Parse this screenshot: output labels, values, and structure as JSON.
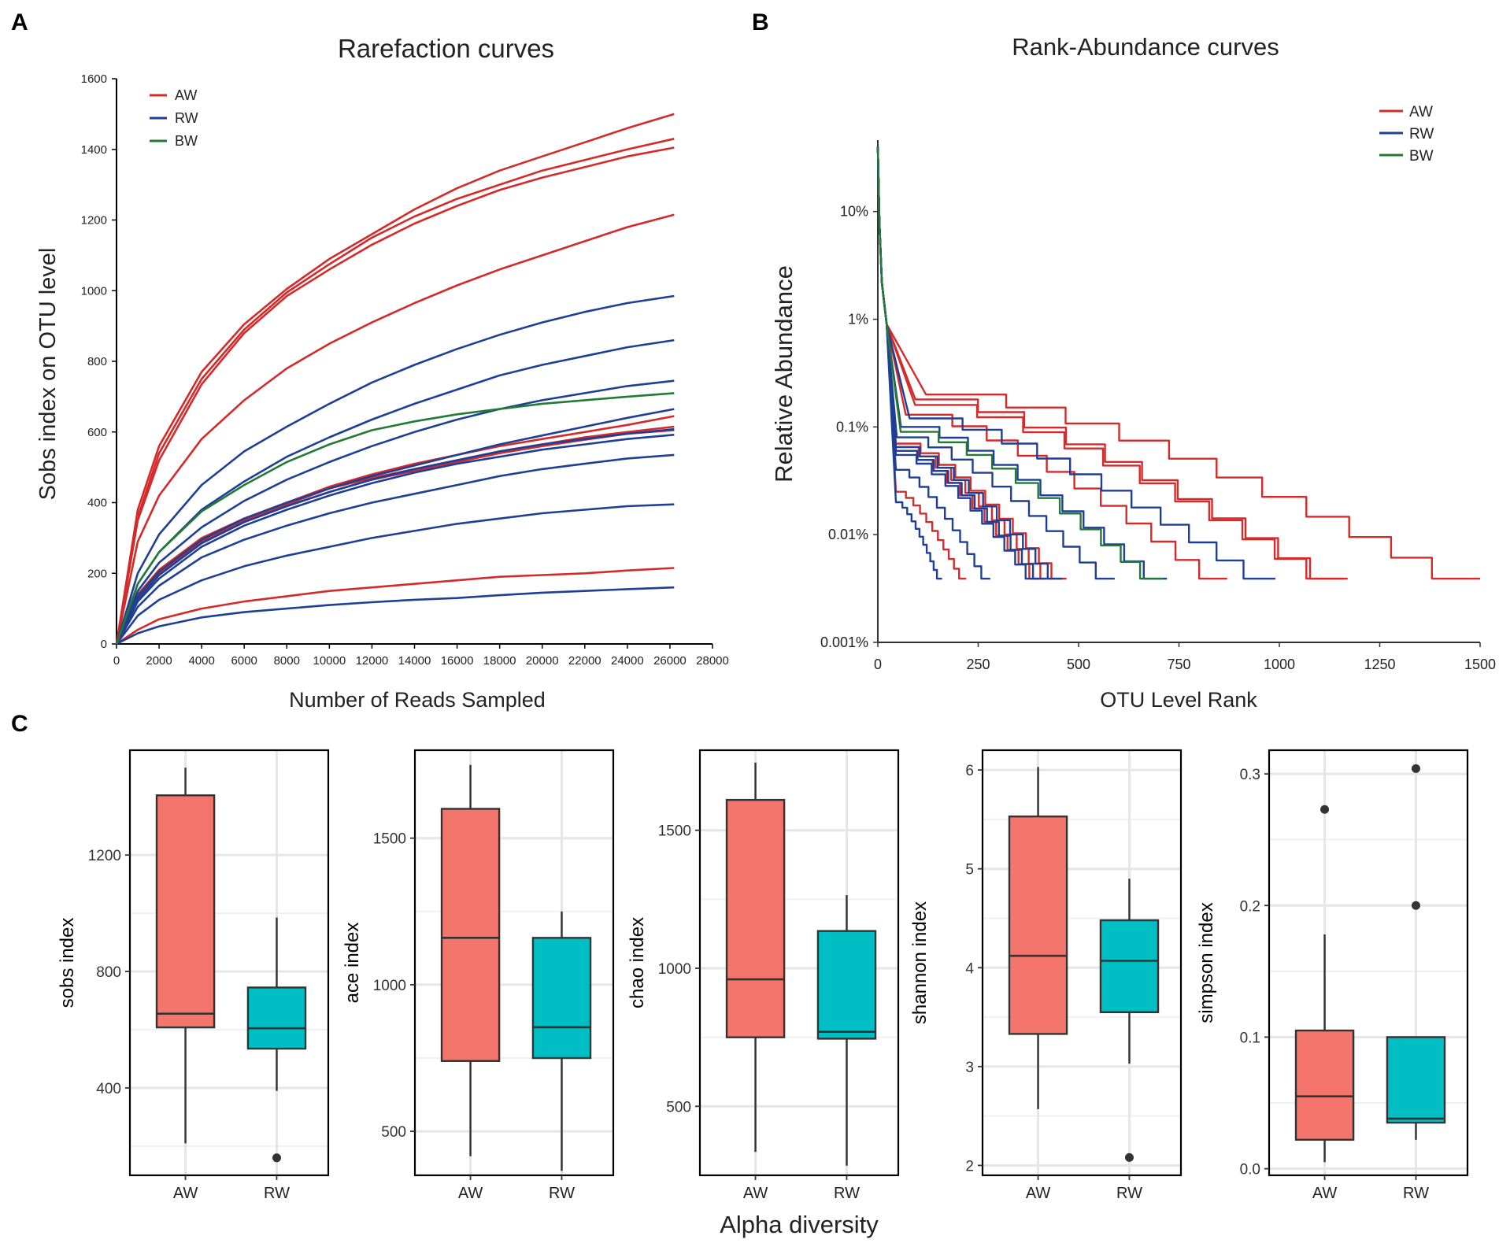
{
  "panel_labels": [
    "A",
    "B",
    "C"
  ],
  "colors": {
    "AW": "#d42a2a",
    "RW": "#1f3f96",
    "BW": "#237a35",
    "box_AW": "#f4756b",
    "box_RW": "#00bfc4",
    "grid": "#e6e6e6"
  },
  "chart_data": [
    {
      "id": "A",
      "type": "line",
      "title": "Rarefaction curves",
      "xlabel": "Number of Reads Sampled",
      "ylabel": "Sobs index on OTU level",
      "xlim": [
        0,
        28000
      ],
      "ylim": [
        0,
        1600
      ],
      "xticks": [
        "0",
        "2000",
        "4000",
        "6000",
        "8000",
        "10000",
        "12000",
        "14000",
        "16000",
        "18000",
        "20000",
        "22000",
        "24000",
        "26000",
        "28000"
      ],
      "yticks": [
        "0",
        "200",
        "400",
        "600",
        "800",
        "1000",
        "1200",
        "1400",
        "1600"
      ],
      "legend": {
        "position": "top-left",
        "entries": [
          "AW",
          "RW",
          "BW"
        ]
      },
      "x": [
        0,
        1000,
        2000,
        4000,
        6000,
        8000,
        10000,
        12000,
        14000,
        16000,
        18000,
        20000,
        22000,
        24000,
        26200
      ],
      "series": [
        {
          "name": "AW",
          "values": [
            0,
            380,
            560,
            770,
            905,
            1005,
            1090,
            1160,
            1230,
            1290,
            1340,
            1380,
            1420,
            1460,
            1500
          ]
        },
        {
          "name": "AW",
          "values": [
            0,
            360,
            540,
            750,
            890,
            995,
            1075,
            1150,
            1210,
            1260,
            1300,
            1340,
            1370,
            1400,
            1430
          ]
        },
        {
          "name": "AW",
          "values": [
            0,
            350,
            520,
            735,
            880,
            985,
            1060,
            1130,
            1190,
            1240,
            1285,
            1320,
            1350,
            1380,
            1405
          ]
        },
        {
          "name": "AW",
          "values": [
            0,
            290,
            420,
            580,
            690,
            780,
            850,
            910,
            965,
            1015,
            1060,
            1100,
            1140,
            1180,
            1215
          ]
        },
        {
          "name": "AW",
          "values": [
            0,
            140,
            210,
            300,
            355,
            400,
            445,
            480,
            510,
            535,
            560,
            580,
            600,
            620,
            645
          ]
        },
        {
          "name": "AW",
          "values": [
            0,
            130,
            200,
            290,
            350,
            395,
            440,
            470,
            495,
            520,
            545,
            565,
            585,
            600,
            615
          ]
        },
        {
          "name": "AW",
          "values": [
            0,
            130,
            195,
            285,
            345,
            390,
            430,
            465,
            490,
            515,
            540,
            560,
            578,
            595,
            605
          ]
        },
        {
          "name": "AW",
          "values": [
            0,
            40,
            70,
            100,
            120,
            135,
            150,
            160,
            170,
            180,
            190,
            195,
            200,
            208,
            215
          ]
        },
        {
          "name": "RW",
          "values": [
            0,
            200,
            310,
            450,
            545,
            615,
            680,
            740,
            790,
            835,
            875,
            910,
            940,
            965,
            985
          ]
        },
        {
          "name": "RW",
          "values": [
            0,
            170,
            260,
            380,
            460,
            530,
            585,
            635,
            680,
            720,
            760,
            790,
            815,
            840,
            860
          ]
        },
        {
          "name": "RW",
          "values": [
            0,
            150,
            230,
            330,
            405,
            465,
            515,
            560,
            600,
            635,
            665,
            690,
            710,
            730,
            745
          ]
        },
        {
          "name": "RW",
          "values": [
            0,
            135,
            205,
            295,
            355,
            400,
            440,
            475,
            505,
            535,
            565,
            590,
            615,
            640,
            665
          ]
        },
        {
          "name": "RW",
          "values": [
            0,
            125,
            195,
            285,
            345,
            390,
            430,
            465,
            495,
            520,
            545,
            565,
            580,
            595,
            608
          ]
        },
        {
          "name": "RW",
          "values": [
            0,
            120,
            185,
            275,
            335,
            380,
            420,
            455,
            485,
            510,
            530,
            550,
            565,
            580,
            592
          ]
        },
        {
          "name": "RW",
          "values": [
            0,
            105,
            165,
            245,
            295,
            335,
            370,
            400,
            425,
            450,
            475,
            495,
            510,
            525,
            535
          ]
        },
        {
          "name": "RW",
          "values": [
            0,
            80,
            125,
            180,
            220,
            250,
            275,
            300,
            320,
            340,
            355,
            370,
            380,
            390,
            395
          ]
        },
        {
          "name": "RW",
          "values": [
            0,
            30,
            50,
            75,
            90,
            100,
            110,
            118,
            125,
            130,
            138,
            145,
            150,
            155,
            160
          ]
        },
        {
          "name": "BW",
          "values": [
            0,
            170,
            260,
            375,
            450,
            515,
            565,
            605,
            630,
            650,
            665,
            680,
            690,
            700,
            710
          ]
        }
      ]
    },
    {
      "id": "B",
      "type": "line",
      "title": "Rank-Abundance curves",
      "xlabel": "OTU Level Rank",
      "ylabel": "Relative Abundance",
      "xlim": [
        0,
        1500
      ],
      "ylim": [
        0.001,
        100
      ],
      "yscale": "log",
      "xticks": [
        "0",
        "250",
        "500",
        "750",
        "1000",
        "1250",
        "1500"
      ],
      "yticks": [
        "0.001%",
        "0.01%",
        "0.1%",
        "1%",
        "10%"
      ],
      "legend": {
        "position": "top-right",
        "entries": [
          "AW",
          "RW",
          "BW"
        ]
      },
      "series": [
        {
          "name": "AW",
          "end": 1500,
          "knee": 0.2
        },
        {
          "name": "AW",
          "end": 1170,
          "knee": 0.18
        },
        {
          "name": "AW",
          "end": 1160,
          "knee": 0.16
        },
        {
          "name": "AW",
          "end": 870,
          "knee": 0.13
        },
        {
          "name": "AW",
          "end": 470,
          "knee": 0.07
        },
        {
          "name": "AW",
          "end": 440,
          "knee": 0.065
        },
        {
          "name": "AW",
          "end": 410,
          "knee": 0.06
        },
        {
          "name": "AW",
          "end": 220,
          "knee": 0.025
        },
        {
          "name": "RW",
          "end": 990,
          "knee": 0.12
        },
        {
          "name": "RW",
          "end": 720,
          "knee": 0.1
        },
        {
          "name": "RW",
          "end": 590,
          "knee": 0.08
        },
        {
          "name": "RW",
          "end": 460,
          "knee": 0.065
        },
        {
          "name": "RW",
          "end": 420,
          "knee": 0.06
        },
        {
          "name": "RW",
          "end": 400,
          "knee": 0.055
        },
        {
          "name": "RW",
          "end": 280,
          "knee": 0.04
        },
        {
          "name": "RW",
          "end": 160,
          "knee": 0.02
        },
        {
          "name": "BW",
          "end": 710,
          "knee": 0.09
        }
      ]
    },
    {
      "id": "C",
      "type": "box",
      "xlabel": "Alpha diversity",
      "categories": [
        "AW",
        "RW"
      ],
      "panels": [
        {
          "ylabel": "sobs index",
          "ylim": [
            100,
            1560
          ],
          "yticks": [
            400,
            800,
            1200
          ],
          "boxes": [
            {
              "group": "AW",
              "min": 210,
              "q1": 608,
              "median": 655,
              "q3": 1405,
              "max": 1500,
              "outliers": []
            },
            {
              "group": "RW",
              "min": 390,
              "q1": 535,
              "median": 605,
              "q3": 745,
              "max": 985,
              "outliers": [
                160
              ]
            }
          ]
        },
        {
          "ylabel": "ace index",
          "ylim": [
            350,
            1800
          ],
          "yticks": [
            500,
            1000,
            1500
          ],
          "boxes": [
            {
              "group": "AW",
              "min": 415,
              "q1": 740,
              "median": 1160,
              "q3": 1600,
              "max": 1750,
              "outliers": []
            },
            {
              "group": "RW",
              "min": 365,
              "q1": 750,
              "median": 855,
              "q3": 1160,
              "max": 1250,
              "outliers": []
            }
          ]
        },
        {
          "ylabel": "chao index",
          "ylim": [
            250,
            1790
          ],
          "yticks": [
            500,
            1000,
            1500
          ],
          "boxes": [
            {
              "group": "AW",
              "min": 335,
              "q1": 750,
              "median": 960,
              "q3": 1610,
              "max": 1745,
              "outliers": []
            },
            {
              "group": "RW",
              "min": 285,
              "q1": 745,
              "median": 770,
              "q3": 1135,
              "max": 1265,
              "outliers": []
            }
          ]
        },
        {
          "ylabel": "shannon index",
          "ylim": [
            1.9,
            6.2
          ],
          "yticks": [
            2,
            3,
            4,
            5,
            6
          ],
          "boxes": [
            {
              "group": "AW",
              "min": 2.57,
              "q1": 3.33,
              "median": 4.12,
              "q3": 5.53,
              "max": 6.03,
              "outliers": []
            },
            {
              "group": "RW",
              "min": 3.03,
              "q1": 3.55,
              "median": 4.07,
              "q3": 4.48,
              "max": 4.9,
              "outliers": [
                2.08
              ]
            }
          ]
        },
        {
          "ylabel": "simpson index",
          "ylim": [
            -0.005,
            0.318
          ],
          "yticks": [
            0.0,
            0.1,
            0.2,
            0.3
          ],
          "tick_labels": [
            "0.0",
            "0.1",
            "0.2",
            "0.3"
          ],
          "boxes": [
            {
              "group": "AW",
              "min": 0.005,
              "q1": 0.022,
              "median": 0.055,
              "q3": 0.105,
              "max": 0.178,
              "outliers": [
                0.273
              ]
            },
            {
              "group": "RW",
              "min": 0.022,
              "q1": 0.035,
              "median": 0.038,
              "q3": 0.1,
              "max": 0.1,
              "outliers": [
                0.2,
                0.304
              ]
            }
          ]
        }
      ]
    }
  ]
}
